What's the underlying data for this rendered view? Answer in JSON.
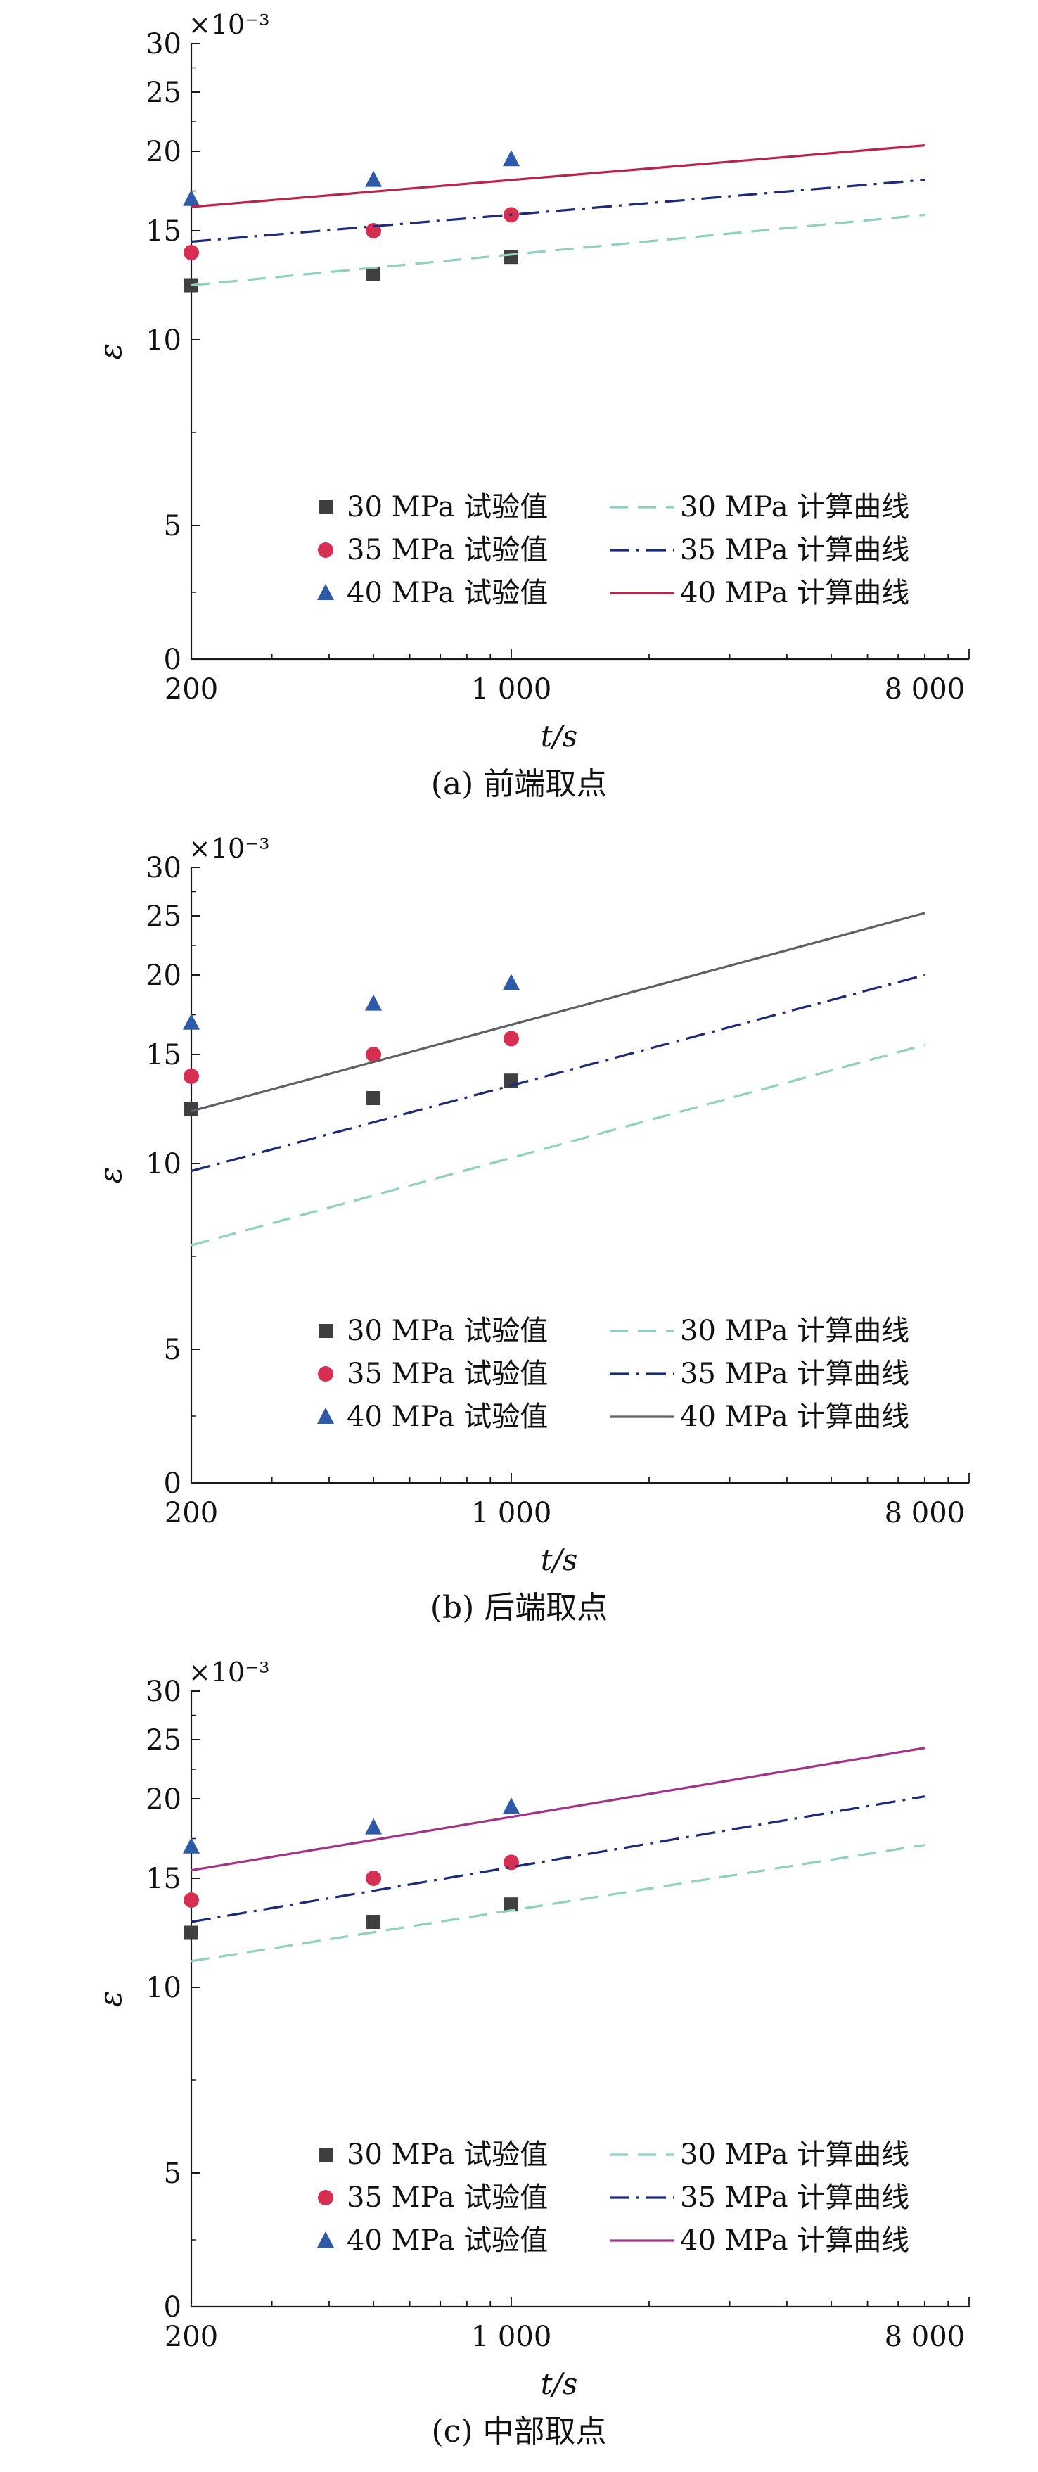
{
  "colors": {
    "s30": "#3f3f3f",
    "s35": "#d72f52",
    "s40": "#2e5aa8",
    "c30": "#8fd1bd",
    "c35": "#1d2a78",
    "c40_a": "#b8244a",
    "c40_b": "#5f6066",
    "c40_c": "#a33385",
    "axis": "#1a1a1a"
  },
  "chart_data": [
    {
      "type": "scatter",
      "panel": "a",
      "caption": "(a) 前端取点",
      "xlabel": "t/s",
      "ylabel": "ε",
      "y_multiplier": "×10⁻³",
      "x_scale": "log",
      "xlim": [
        200,
        10000
      ],
      "x_ticks": [
        "200",
        "1 000",
        "8 000"
      ],
      "y_ticks": [
        "0",
        "5",
        "10",
        "15",
        "20",
        "25",
        "30"
      ],
      "legend": {
        "position": "bottom-right",
        "entries": [
          "30 MPa 试验值",
          "35 MPa 试验值",
          "40 MPa 试验值",
          "30 MPa 计算曲线",
          "35 MPa 计算曲线",
          "40 MPa 计算曲线"
        ]
      },
      "series": [
        {
          "name": "30 MPa 试验值",
          "marker": "square",
          "x": [
            200,
            500,
            1000
          ],
          "y": [
            12.5,
            13.0,
            13.8
          ]
        },
        {
          "name": "35 MPa 试验值",
          "marker": "circle",
          "x": [
            200,
            500,
            1000
          ],
          "y": [
            14.0,
            15.0,
            16.0
          ]
        },
        {
          "name": "40 MPa 试验值",
          "marker": "triangle",
          "x": [
            200,
            500,
            1000
          ],
          "y": [
            17.0,
            18.2,
            19.5
          ]
        },
        {
          "name": "30 MPa 计算曲线",
          "line": "dashed",
          "x": [
            200,
            8000
          ],
          "y": [
            12.5,
            16.0
          ]
        },
        {
          "name": "35 MPa 计算曲线",
          "line": "dashdot",
          "x": [
            200,
            8000
          ],
          "y": [
            14.5,
            18.2
          ]
        },
        {
          "name": "40 MPa 计算曲线",
          "line": "solid",
          "x": [
            200,
            8000
          ],
          "y": [
            16.5,
            20.5
          ]
        }
      ]
    },
    {
      "type": "scatter",
      "panel": "b",
      "caption": "(b) 后端取点",
      "xlabel": "t/s",
      "ylabel": "ε",
      "y_multiplier": "×10⁻³",
      "x_scale": "log",
      "xlim": [
        200,
        10000
      ],
      "x_ticks": [
        "200",
        "1 000",
        "8 000"
      ],
      "y_ticks": [
        "0",
        "5",
        "10",
        "15",
        "20",
        "25",
        "30"
      ],
      "legend": {
        "position": "bottom-right",
        "entries": [
          "30 MPa 试验值",
          "35 MPa 试验值",
          "40 MPa 试验值",
          "30 MPa 计算曲线",
          "35 MPa 计算曲线",
          "40 MPa 计算曲线"
        ]
      },
      "series": [
        {
          "name": "30 MPa 试验值",
          "marker": "square",
          "x": [
            200,
            500,
            1000
          ],
          "y": [
            12.5,
            13.0,
            13.8
          ]
        },
        {
          "name": "35 MPa 试验值",
          "marker": "circle",
          "x": [
            200,
            500,
            1000
          ],
          "y": [
            14.0,
            15.0,
            16.0
          ]
        },
        {
          "name": "40 MPa 试验值",
          "marker": "triangle",
          "x": [
            200,
            500,
            1000
          ],
          "y": [
            17.0,
            18.2,
            19.5
          ]
        },
        {
          "name": "30 MPa 计算曲线",
          "line": "dashed",
          "x": [
            200,
            8000
          ],
          "y": [
            7.8,
            15.6
          ]
        },
        {
          "name": "35 MPa 计算曲线",
          "line": "dashdot",
          "x": [
            200,
            8000
          ],
          "y": [
            9.8,
            20.0
          ]
        },
        {
          "name": "40 MPa 计算曲线",
          "line": "solid",
          "x": [
            200,
            8000
          ],
          "y": [
            12.4,
            25.3
          ]
        }
      ]
    },
    {
      "type": "scatter",
      "panel": "c",
      "caption": "(c) 中部取点",
      "xlabel": "t/s",
      "ylabel": "ε",
      "y_multiplier": "×10⁻³",
      "x_scale": "log",
      "xlim": [
        200,
        10000
      ],
      "x_ticks": [
        "200",
        "1 000",
        "8 000"
      ],
      "y_ticks": [
        "0",
        "5",
        "10",
        "15",
        "20",
        "25",
        "30"
      ],
      "legend": {
        "position": "bottom-right",
        "entries": [
          "30 MPa 试验值",
          "35 MPa 试验值",
          "40 MPa 试验值",
          "30 MPa 计算曲线",
          "35 MPa 计算曲线",
          "40 MPa 计算曲线"
        ]
      },
      "series": [
        {
          "name": "30 MPa 试验值",
          "marker": "square",
          "x": [
            200,
            500,
            1000
          ],
          "y": [
            12.5,
            13.0,
            13.8
          ]
        },
        {
          "name": "35 MPa 试验值",
          "marker": "circle",
          "x": [
            200,
            500,
            1000
          ],
          "y": [
            14.0,
            15.0,
            16.0
          ]
        },
        {
          "name": "40 MPa 试验值",
          "marker": "triangle",
          "x": [
            200,
            500,
            1000
          ],
          "y": [
            17.0,
            18.2,
            19.5
          ]
        },
        {
          "name": "30 MPa 计算曲线",
          "line": "dashed",
          "x": [
            200,
            8000
          ],
          "y": [
            11.2,
            17.1
          ]
        },
        {
          "name": "35 MPa 计算曲线",
          "line": "dashdot",
          "x": [
            200,
            8000
          ],
          "y": [
            13.0,
            20.2
          ]
        },
        {
          "name": "40 MPa 计算曲线",
          "line": "solid",
          "x": [
            200,
            8000
          ],
          "y": [
            15.5,
            24.3
          ]
        }
      ]
    }
  ]
}
